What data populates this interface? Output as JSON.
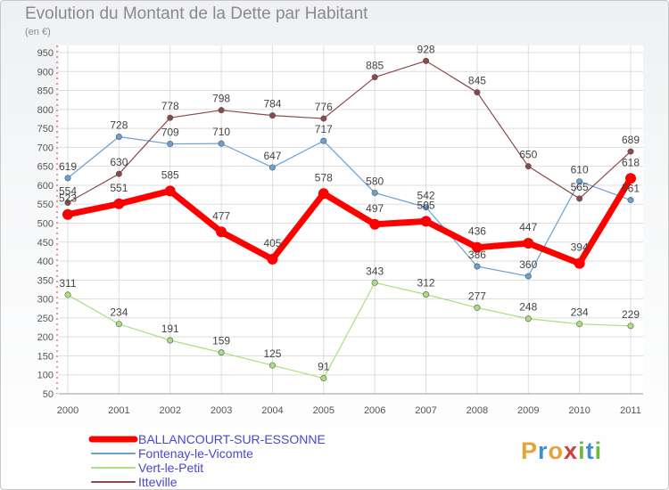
{
  "title": "Evolution du Montant de la Dette par Habitant",
  "unit_label": "(en €)",
  "logo": {
    "text": "Proxiti",
    "letters": [
      "P",
      "r",
      "o",
      "x",
      "i",
      "t",
      "i"
    ],
    "letter_colors": [
      "#e8a23a",
      "#3d8fd0",
      "#e8a23a",
      "#d04040",
      "#6dbb3c",
      "#3d8fd0",
      "#6dbb3c"
    ]
  },
  "colors": {
    "ballancourt": "#ff0000",
    "fontenay": "#6aa0d2",
    "vert": "#a8e080",
    "itteville": "#8a4a4a",
    "label": "#444444",
    "grid": "#dddddd"
  },
  "chart_data": {
    "type": "line",
    "title": "Evolution du Montant de la Dette par Habitant",
    "ylabel": "(en €)",
    "ylim": [
      50,
      950
    ],
    "ytick_step": 50,
    "grid": true,
    "legend_position": "bottom-left",
    "x": [
      "2000",
      "2001",
      "2002",
      "2003",
      "2004",
      "2005",
      "2006",
      "2007",
      "2008",
      "2009",
      "2010",
      "2011"
    ],
    "series": [
      {
        "name": "BALLANCOURT-SUR-ESSONNE",
        "key": "ballancourt",
        "values": [
          523,
          551,
          585,
          477,
          405,
          578,
          497,
          505,
          436,
          447,
          394,
          618
        ],
        "labels": [
          "523",
          "551",
          "585",
          "477",
          "405",
          "578",
          "497",
          "505",
          "436",
          "447",
          "394",
          "618"
        ]
      },
      {
        "name": "Fontenay-le-Vicomte",
        "key": "fontenay",
        "values": [
          619,
          728,
          709,
          710,
          647,
          717,
          580,
          542,
          386,
          360,
          610,
          561
        ],
        "labels": [
          "619",
          "728",
          "709",
          "710",
          "647",
          "717",
          "580",
          "542",
          "386",
          "360",
          "610",
          "561"
        ]
      },
      {
        "name": "Vert-le-Petit",
        "key": "vert",
        "values": [
          311,
          234,
          191,
          159,
          125,
          91,
          343,
          312,
          277,
          248,
          234,
          229
        ],
        "labels": [
          "311",
          "234",
          "191",
          "159",
          "125",
          "91",
          "343",
          "312",
          "277",
          "248",
          "234",
          "229"
        ]
      },
      {
        "name": "Itteville",
        "key": "itteville",
        "values": [
          554,
          630,
          778,
          798,
          784,
          776,
          885,
          928,
          845,
          650,
          565,
          689
        ],
        "labels": [
          "554",
          "630",
          "778",
          "798",
          "784",
          "776",
          "885",
          "928",
          "845",
          "650",
          "565",
          "689"
        ]
      }
    ]
  }
}
